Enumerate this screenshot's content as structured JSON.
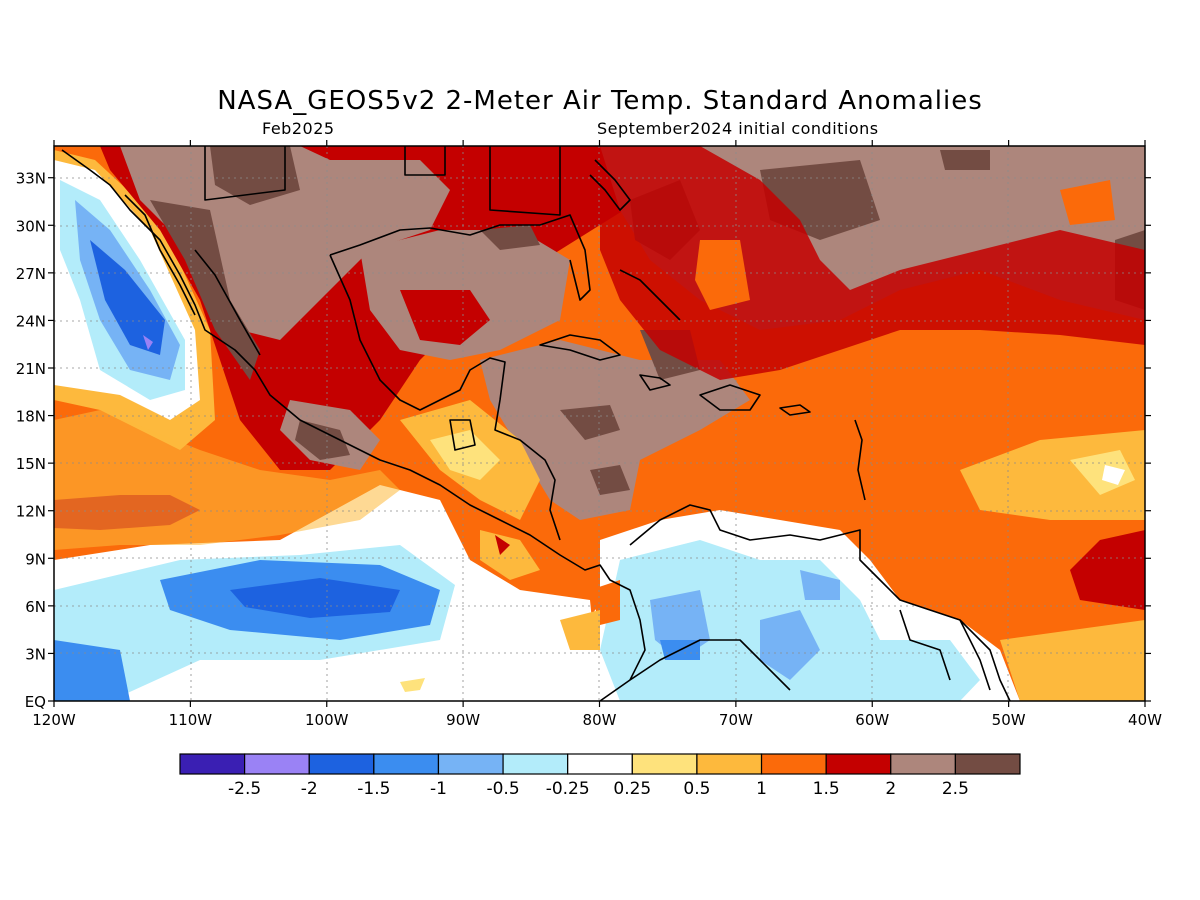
{
  "title": "NASA_GEOS5v2 2-Meter Air Temp. Standard Anomalies",
  "subtitle_left": "Feb2025",
  "subtitle_right": "September2024 initial conditions",
  "axes": {
    "lat_labels": [
      "33N",
      "30N",
      "27N",
      "24N",
      "21N",
      "18N",
      "15N",
      "12N",
      "9N",
      "6N",
      "3N",
      "EQ"
    ],
    "lon_labels": [
      "120W",
      "110W",
      "100W",
      "90W",
      "80W",
      "70W",
      "60W",
      "50W",
      "40W"
    ],
    "lat_values": [
      33,
      30,
      27,
      24,
      21,
      18,
      15,
      12,
      9,
      6,
      3,
      0
    ],
    "lon_values": [
      -120,
      -110,
      -100,
      -90,
      -80,
      -70,
      -60,
      -50,
      -40
    ],
    "lat_range": [
      0,
      35
    ],
    "lon_range": [
      -120,
      -40
    ],
    "grid": "dotted"
  },
  "colorbar": {
    "colors": [
      "#3a1fb3",
      "#9a82f5",
      "#1d62e0",
      "#3b8df0",
      "#76b3f5",
      "#b3ecfa",
      "#ffffff",
      "#fee27c",
      "#fdb93d",
      "#fb6a0a",
      "#c40000",
      "#ad867c",
      "#734c43"
    ],
    "labels": [
      "-2.5",
      "-2",
      "-1.5",
      "-1",
      "-0.5",
      "-0.25",
      "0.25",
      "0.5",
      "1",
      "1.5",
      "2",
      "2.5"
    ]
  }
}
